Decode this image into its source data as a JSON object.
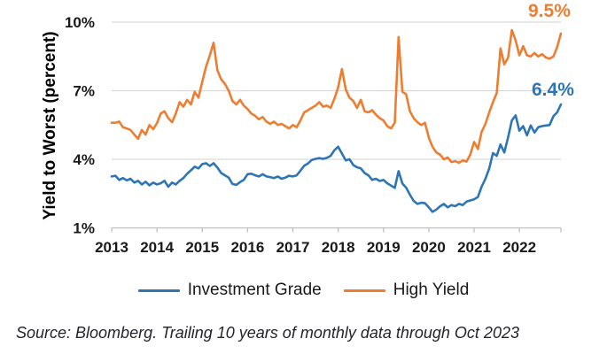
{
  "chart": {
    "source": "Source: Bloomberg. Trailing 10 years of monthly data through Oct 2023"
  },
  "chart_data": {
    "type": "line",
    "title": "",
    "xlabel": "",
    "ylabel": "Yield to Worst (percent)",
    "x_unit": "monthly, Nov 2013 through Oct 2023",
    "x_tick_labels": [
      "2013",
      "2014",
      "2015",
      "2016",
      "2017",
      "2018",
      "2019",
      "2020",
      "2021",
      "2022"
    ],
    "ylim": [
      1,
      10
    ],
    "y_ticks": [
      10,
      7,
      4,
      1
    ],
    "y_tick_labels": [
      "10%",
      "7%",
      "4%",
      "1%"
    ],
    "grid": "horizontal",
    "legend_position": "bottom",
    "axis_color": "#bfbfbf",
    "gridline_color": "#d9d9d9",
    "tick_label_color": "#1a1a1a",
    "series": [
      {
        "name": "Investment Grade",
        "color": "#2E75B6",
        "end_label": "6.4%",
        "values": [
          3.25,
          3.28,
          3.1,
          3.18,
          3.08,
          3.15,
          2.98,
          3.06,
          2.9,
          3.02,
          2.86,
          2.98,
          2.9,
          2.95,
          3.06,
          2.8,
          2.98,
          2.9,
          3.06,
          3.18,
          3.37,
          3.52,
          3.68,
          3.6,
          3.79,
          3.83,
          3.71,
          3.83,
          3.64,
          3.4,
          3.3,
          3.2,
          2.92,
          2.88,
          3.0,
          3.1,
          3.35,
          3.37,
          3.3,
          3.25,
          3.35,
          3.25,
          3.22,
          3.18,
          3.25,
          3.15,
          3.2,
          3.28,
          3.25,
          3.3,
          3.5,
          3.72,
          3.82,
          3.97,
          4.02,
          4.05,
          4.02,
          4.06,
          4.15,
          4.4,
          4.55,
          4.25,
          3.95,
          4.0,
          3.75,
          3.65,
          3.6,
          3.4,
          3.3,
          3.1,
          3.15,
          3.05,
          3.1,
          2.95,
          2.85,
          2.75,
          3.48,
          2.94,
          2.76,
          2.45,
          2.18,
          2.05,
          2.1,
          2.08,
          1.9,
          1.7,
          1.8,
          1.95,
          2.05,
          1.9,
          2.0,
          1.95,
          2.05,
          2.0,
          2.15,
          2.2,
          2.25,
          2.35,
          2.8,
          3.15,
          3.6,
          4.27,
          4.15,
          4.65,
          4.3,
          4.96,
          5.7,
          5.92,
          5.25,
          5.45,
          5.05,
          5.48,
          5.17,
          5.4,
          5.45,
          5.48,
          5.5,
          5.88,
          6.05,
          6.4
        ]
      },
      {
        "name": "High Yield",
        "color": "#ED7D31",
        "end_label": "9.5%",
        "values": [
          5.6,
          5.6,
          5.65,
          5.4,
          5.35,
          5.28,
          5.08,
          4.9,
          5.28,
          5.08,
          5.5,
          5.32,
          5.58,
          6.0,
          6.1,
          5.8,
          5.62,
          6.0,
          6.5,
          6.3,
          6.6,
          6.4,
          6.95,
          6.7,
          7.4,
          8.05,
          8.55,
          9.1,
          7.9,
          7.5,
          7.3,
          7.0,
          6.55,
          6.4,
          6.6,
          6.35,
          6.2,
          6.0,
          5.9,
          5.75,
          5.85,
          5.65,
          5.55,
          5.65,
          5.5,
          5.55,
          5.45,
          5.35,
          5.5,
          5.4,
          5.7,
          6.05,
          6.15,
          6.25,
          6.35,
          6.5,
          6.3,
          6.35,
          6.25,
          6.65,
          7.15,
          7.95,
          7.05,
          6.7,
          6.55,
          6.25,
          6.6,
          6.1,
          6.05,
          6.15,
          5.95,
          5.8,
          5.7,
          5.45,
          5.35,
          5.6,
          9.35,
          6.95,
          6.85,
          6.1,
          5.8,
          5.62,
          5.5,
          5.6,
          4.95,
          4.55,
          4.3,
          4.2,
          4.0,
          4.08,
          3.88,
          3.92,
          3.85,
          3.95,
          3.9,
          4.2,
          4.76,
          4.45,
          5.2,
          5.55,
          6.05,
          6.5,
          6.9,
          8.85,
          8.15,
          8.45,
          9.65,
          9.2,
          8.55,
          8.95,
          8.55,
          8.5,
          8.65,
          8.5,
          8.6,
          8.45,
          8.4,
          8.5,
          8.9,
          9.5
        ]
      }
    ]
  }
}
